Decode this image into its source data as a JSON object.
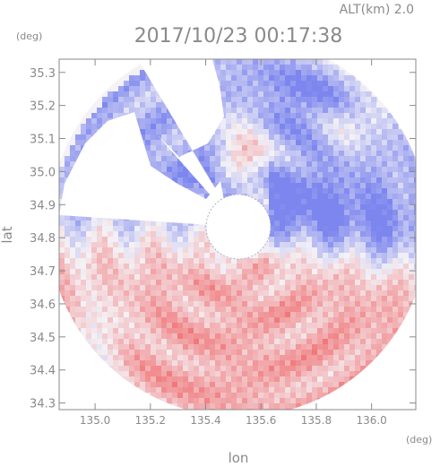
{
  "chart_data": {
    "type": "heatmap",
    "title": "2017/10/23 00:17:38",
    "subtitle": "ALT(km) 2.0",
    "xlabel": "lon",
    "ylabel": "lat",
    "x_unit": "(deg)",
    "y_unit": "(deg)",
    "xlim": [
      134.87,
      136.16
    ],
    "ylim": [
      34.28,
      35.34
    ],
    "x_ticks": [
      135.0,
      135.2,
      135.4,
      135.6,
      135.8,
      136.0
    ],
    "x_tick_labels": [
      "135.0",
      "135.2",
      "135.4",
      "135.6",
      "135.8",
      "136.0"
    ],
    "y_ticks": [
      34.3,
      34.4,
      34.5,
      34.6,
      34.7,
      34.8,
      34.9,
      35.0,
      35.1,
      35.2,
      35.3
    ],
    "y_tick_labels": [
      "34.3",
      "34.4",
      "34.5",
      "34.6",
      "34.7",
      "34.8",
      "34.9",
      "35.0",
      "35.1",
      "35.2",
      "35.3"
    ],
    "radar_center": {
      "lon": 135.52,
      "lat": 34.82
    },
    "grid": false,
    "legend": "none",
    "colors": {
      "positive": "#f0787a",
      "negative": "#7c86ee",
      "neutral": "#f4f2f6",
      "axis": "#8a8a8a"
    }
  }
}
